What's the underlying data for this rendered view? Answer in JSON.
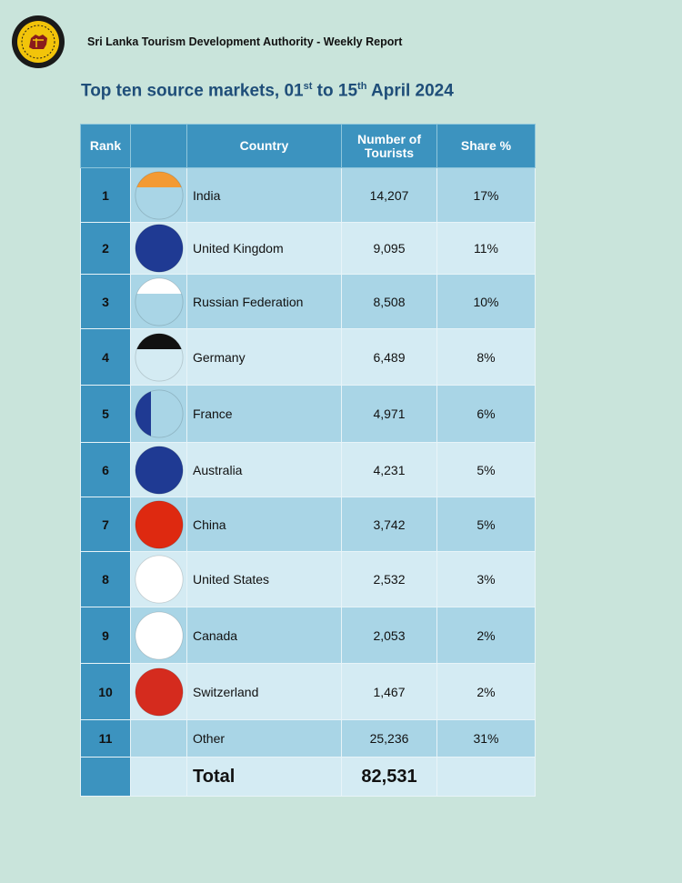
{
  "header": {
    "organization": "Sri Lanka Tourism Development Authority - Weekly Report",
    "title_main": "Top ten source markets, 01",
    "title_sup1": "st",
    "title_mid": " to 15",
    "title_sup2": "th",
    "title_end": " April 2024"
  },
  "table": {
    "columns": {
      "rank": "Rank",
      "country": "Country",
      "tourists_line1": "Number of",
      "tourists_line2": "Tourists",
      "share": "Share %"
    },
    "rows": [
      {
        "rank": "1",
        "flag": "india-flag-icon",
        "country": "India",
        "tourists": "14,207",
        "share": "17%"
      },
      {
        "rank": "2",
        "flag": "uk-flag-icon",
        "country": "United Kingdom",
        "tourists": "9,095",
        "share": "11%"
      },
      {
        "rank": "3",
        "flag": "russia-flag-icon",
        "country": "Russian Federation",
        "tourists": "8,508",
        "share": "10%"
      },
      {
        "rank": "4",
        "flag": "germany-flag-icon",
        "country": "Germany",
        "tourists": "6,489",
        "share": "8%"
      },
      {
        "rank": "5",
        "flag": "france-flag-icon",
        "country": "France",
        "tourists": "4,971",
        "share": "6%"
      },
      {
        "rank": "6",
        "flag": "australia-flag-icon",
        "country": "Australia",
        "tourists": "4,231",
        "share": "5%"
      },
      {
        "rank": "7",
        "flag": "china-flag-icon",
        "country": "China",
        "tourists": "3,742",
        "share": "5%"
      },
      {
        "rank": "8",
        "flag": "usa-flag-icon",
        "country": "United States",
        "tourists": "2,532",
        "share": "3%"
      },
      {
        "rank": "9",
        "flag": "canada-flag-icon",
        "country": "Canada",
        "tourists": "2,053",
        "share": "2%"
      },
      {
        "rank": "10",
        "flag": "switzerland-flag-icon",
        "country": "Switzerland",
        "tourists": "1,467",
        "share": "2%"
      }
    ],
    "other": {
      "rank": "11",
      "country": "Other",
      "tourists": "25,236",
      "share": "31%"
    },
    "total": {
      "label": "Total",
      "tourists": "82,531"
    }
  }
}
